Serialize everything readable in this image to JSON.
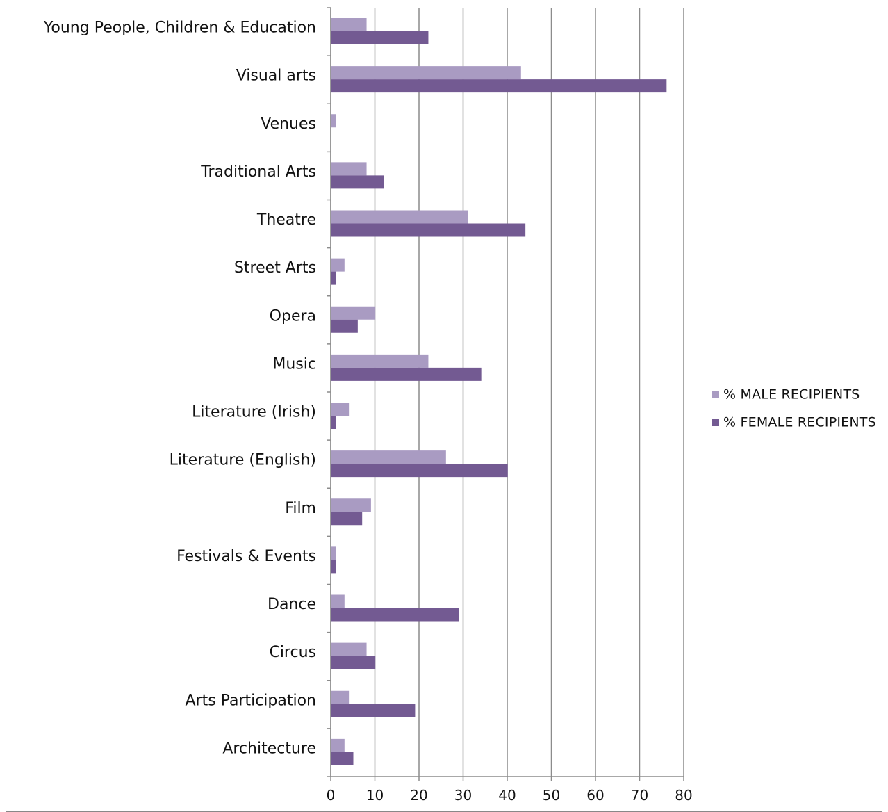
{
  "chart_data": {
    "type": "bar",
    "orientation": "horizontal",
    "categories": [
      "Young People, Children & Education",
      "Visual arts",
      "Venues",
      "Traditional Arts",
      "Theatre",
      "Street Arts",
      "Opera",
      "Music",
      "Literature (Irish)",
      "Literature (English)",
      "Film",
      "Festivals & Events",
      "Dance",
      "Circus",
      "Arts Participation",
      "Architecture"
    ],
    "series": [
      {
        "name": "% MALE RECIPIENTS",
        "color": "#a99bc2",
        "values": [
          8,
          43,
          1,
          8,
          31,
          3,
          10,
          22,
          4,
          26,
          9,
          1,
          3,
          8,
          4,
          3
        ]
      },
      {
        "name": "% FEMALE RECIPIENTS",
        "color": "#735a92",
        "values": [
          22,
          76,
          0,
          12,
          44,
          1,
          6,
          34,
          1,
          40,
          7,
          1,
          29,
          10,
          19,
          5
        ]
      }
    ],
    "xlim": [
      0,
      80
    ],
    "xticks": [
      "0",
      "10",
      "20",
      "30",
      "40",
      "50",
      "60",
      "70",
      "80"
    ],
    "grid": "vertical",
    "legend": "right"
  }
}
